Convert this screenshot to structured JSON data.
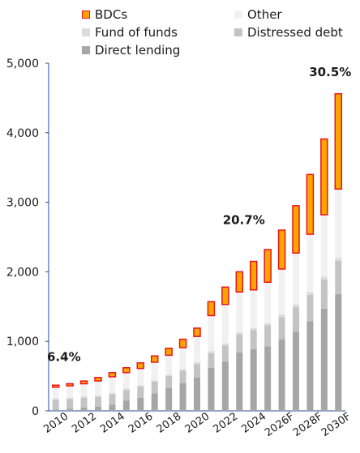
{
  "chart_data": {
    "type": "bar",
    "stacked": true,
    "categories": [
      "2010",
      "2011",
      "2012",
      "2013",
      "2014",
      "2015",
      "2016",
      "2017",
      "2018",
      "2019",
      "2020",
      "2021",
      "2022",
      "2023",
      "2024",
      "2025",
      "2026F",
      "2027F",
      "2028F",
      "2029F",
      "2030F"
    ],
    "x_tick_labels": [
      "2010",
      "2012",
      "2014",
      "2016",
      "2018",
      "2020",
      "2022",
      "2024",
      "2026F",
      "2028F",
      "2030F"
    ],
    "ylim": [
      0,
      5000
    ],
    "y_ticks": [
      "0",
      "1,000",
      "2,000",
      "3,000",
      "4,000",
      "5,000"
    ],
    "grid": false,
    "legend_position": "top",
    "series": [
      {
        "name": "Direct lending",
        "color": "#a6a6a6",
        "values": [
          20,
          30,
          50,
          60,
          90,
          150,
          190,
          250,
          330,
          400,
          480,
          620,
          710,
          840,
          890,
          930,
          1030,
          1140,
          1290,
          1470,
          1680
        ]
      },
      {
        "name": "Distressed debt",
        "color": "#c4c4c4",
        "values": [
          140,
          140,
          140,
          140,
          150,
          150,
          160,
          170,
          170,
          180,
          190,
          210,
          230,
          260,
          270,
          300,
          320,
          350,
          380,
          420,
          480
        ]
      },
      {
        "name": "Fund of funds",
        "color": "#dcdcdc",
        "values": [
          20,
          20,
          20,
          20,
          20,
          20,
          20,
          20,
          20,
          20,
          30,
          30,
          30,
          30,
          30,
          30,
          40,
          40,
          40,
          40,
          40
        ]
      },
      {
        "name": "Other",
        "color": "#f1f1f1",
        "values": [
          160,
          170,
          180,
          210,
          230,
          230,
          240,
          260,
          280,
          310,
          370,
          510,
          560,
          580,
          550,
          590,
          650,
          740,
          830,
          890,
          990
        ]
      },
      {
        "name": "BDCs",
        "color": "#ffa500",
        "values": [
          30,
          30,
          40,
          50,
          60,
          70,
          80,
          90,
          100,
          120,
          120,
          200,
          250,
          290,
          410,
          470,
          560,
          680,
          860,
          1090,
          1370
        ]
      }
    ],
    "annotations": [
      {
        "text": "6.4%",
        "category": "2010"
      },
      {
        "text": "20.7%",
        "category": "2024"
      },
      {
        "text": "30.5%",
        "category": "2030F"
      }
    ],
    "bdc_outline_color": "#e8141e"
  }
}
